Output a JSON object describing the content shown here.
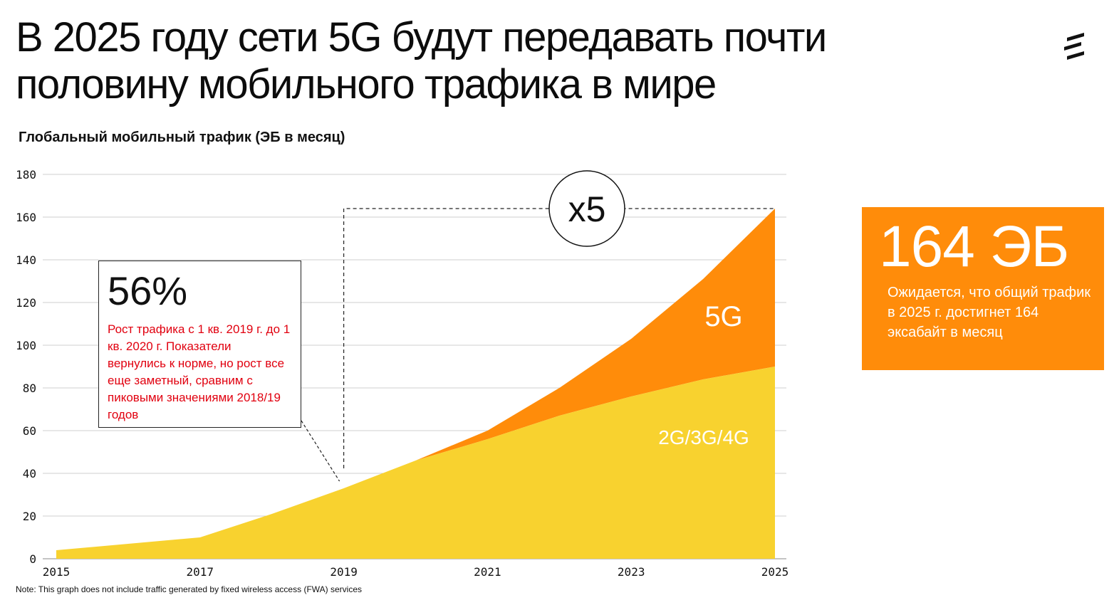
{
  "header": {
    "title": "В 2025 году сети 5G будут передавать почти половину мобильного трафика в мире"
  },
  "logo": {
    "icon": "ericsson-logo-icon"
  },
  "subtitle": "Глобальный мобильный трафик (ЭБ в месяц)",
  "chart_data": {
    "type": "area",
    "stacked": true,
    "x": [
      2015,
      2016,
      2017,
      2018,
      2019,
      2020,
      2021,
      2022,
      2023,
      2024,
      2025
    ],
    "series": [
      {
        "name": "2G/3G/4G",
        "values": [
          4,
          7,
          10,
          21,
          33,
          46,
          56,
          67,
          76,
          84,
          90
        ],
        "color": "#f8d22f"
      },
      {
        "name": "5G",
        "values": [
          0,
          0,
          0,
          0,
          0,
          0,
          4,
          13,
          27,
          47,
          74
        ],
        "color": "#ff8c0a"
      }
    ],
    "ylim": [
      0,
      180
    ],
    "yticks": [
      0,
      20,
      40,
      60,
      80,
      100,
      120,
      140,
      160,
      180
    ],
    "xticks": [
      "2015",
      "2017",
      "2019",
      "2021",
      "2023",
      "2025"
    ],
    "grid": true,
    "xlabel": "",
    "ylabel": "",
    "annotations": {
      "multiplier": "x5",
      "multiplier_from": {
        "x": 2019,
        "y": 33
      },
      "multiplier_to": {
        "x": 2025,
        "y": 164
      },
      "callout_point": {
        "x": 2019,
        "y": 33
      }
    }
  },
  "callout": {
    "percent": "56%",
    "text": "Рост трафика с 1 кв. 2019 г. до 1 кв. 2020 г. Показатели вернулись к норме, но рост все еще заметный, сравним с пиковыми значениями 2018/19 годов"
  },
  "kpi": {
    "value": "164 ЭБ",
    "text": "Ожидается, что общий трафик в 2025 г. достигнет 164 эксабайт в месяц"
  },
  "note": "Note: This graph does not include traffic generated by fixed wireless access (FWA) services",
  "colors": {
    "accent": "#ff8c0a",
    "legacy": "#f8d22f",
    "callout_text": "#e1000f"
  }
}
